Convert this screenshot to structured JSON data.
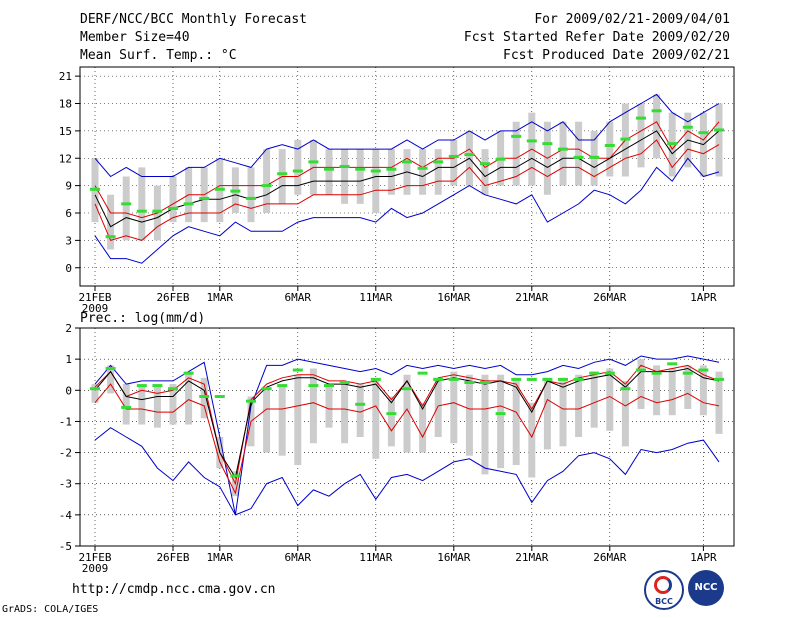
{
  "header": {
    "title": "DERF/NCC/BCC Monthly Forecast",
    "member_size": "Member Size=40",
    "variable": "Mean Surf. Temp.: °C",
    "forecast_period": "For 2009/02/21-2009/04/01",
    "started_date": "Fcst Started Refer Date 2009/02/20",
    "produced_date": "Fcst Produced Date 2009/02/21"
  },
  "footer": {
    "url": "http://cmdp.ncc.cma.gov.cn",
    "credit": "GrADS: COLA/IGES",
    "logo_left": "BCC",
    "logo_right": "NCC"
  },
  "colors": {
    "envelope": "#0000cc",
    "spread": "#dd0000",
    "mean": "#000000",
    "bar": "#cccccc",
    "marker": "#33dd33"
  },
  "chart_data": [
    {
      "type": "line",
      "title": "Mean Surf. Temp.: °C",
      "ylim": [
        -2,
        22
      ],
      "yticks": [
        0,
        3,
        6,
        9,
        12,
        15,
        18,
        21
      ],
      "x_tick_labels": [
        {
          "day": 0,
          "label": "21FEB",
          "sub": "2009"
        },
        {
          "day": 5,
          "label": "26FEB"
        },
        {
          "day": 8,
          "label": "1MAR"
        },
        {
          "day": 13,
          "label": "6MAR"
        },
        {
          "day": 18,
          "label": "11MAR"
        },
        {
          "day": 23,
          "label": "16MAR"
        },
        {
          "day": 28,
          "label": "21MAR"
        },
        {
          "day": 33,
          "label": "26MAR"
        },
        {
          "day": 39,
          "label": "1APR"
        }
      ],
      "series": [
        {
          "name": "max",
          "color": "blue",
          "values": [
            12,
            10,
            11,
            10,
            10,
            10,
            11,
            11,
            12,
            11.5,
            11,
            13,
            13.5,
            13,
            14,
            13,
            13,
            13,
            13,
            13,
            14,
            13,
            14,
            14,
            15,
            14,
            15,
            15,
            16,
            15,
            16,
            14,
            14,
            16,
            17,
            18,
            19,
            17,
            16,
            17,
            18
          ]
        },
        {
          "name": "upper",
          "color": "red",
          "values": [
            9,
            6,
            6,
            5.5,
            6,
            7,
            8,
            8,
            9,
            9,
            9,
            9,
            10,
            10,
            11,
            11,
            11,
            11,
            11,
            11,
            12,
            11,
            12,
            12,
            13,
            11,
            12,
            12,
            13,
            12,
            13,
            13,
            12,
            12,
            14,
            15,
            16,
            13,
            15,
            14,
            16
          ]
        },
        {
          "name": "mean",
          "color": "black",
          "values": [
            8,
            4.5,
            5.5,
            5,
            5.5,
            6.5,
            7,
            7.5,
            7.5,
            8,
            7.5,
            8,
            9,
            9,
            9.5,
            9.5,
            9.5,
            9.5,
            10,
            10,
            10.5,
            10,
            11,
            11,
            12,
            10,
            11,
            11,
            12,
            11,
            12,
            12,
            11,
            12,
            13,
            14,
            15,
            12.5,
            14,
            13.5,
            15
          ]
        },
        {
          "name": "lower",
          "color": "red",
          "values": [
            7,
            3,
            3.5,
            3,
            4.5,
            5.5,
            6,
            6,
            6,
            7,
            6.5,
            7,
            7,
            7,
            8,
            8,
            8,
            8,
            8.5,
            8.5,
            9,
            9,
            9.5,
            9.5,
            11,
            9,
            9.5,
            10,
            11,
            10,
            11,
            11,
            10,
            11,
            12,
            12.5,
            14,
            11,
            13,
            12.5,
            13.5
          ]
        },
        {
          "name": "min",
          "color": "blue",
          "values": [
            3.5,
            1,
            1,
            0.5,
            2,
            3.5,
            4.5,
            4,
            3.5,
            5,
            4,
            4,
            4,
            5,
            5.5,
            5.5,
            5.5,
            5.5,
            5,
            6.5,
            5.5,
            6,
            7,
            8,
            9,
            8,
            7.5,
            7,
            8,
            5,
            6,
            7,
            8.5,
            8,
            7,
            8.5,
            11,
            9.5,
            12,
            10,
            10.5
          ]
        }
      ],
      "ranges": [
        [
          5,
          12
        ],
        [
          2,
          8
        ],
        [
          3,
          10
        ],
        [
          3,
          11
        ],
        [
          3,
          9
        ],
        [
          5,
          10
        ],
        [
          5,
          11
        ],
        [
          5,
          11
        ],
        [
          5,
          12
        ],
        [
          6,
          11
        ],
        [
          5,
          11
        ],
        [
          6,
          13
        ],
        [
          7,
          13
        ],
        [
          8,
          14
        ],
        [
          8,
          14
        ],
        [
          8,
          13
        ],
        [
          7,
          13
        ],
        [
          7,
          13
        ],
        [
          6,
          13
        ],
        [
          8,
          13
        ],
        [
          8,
          13
        ],
        [
          8,
          13
        ],
        [
          8,
          13
        ],
        [
          9,
          14
        ],
        [
          9,
          15
        ],
        [
          8,
          13
        ],
        [
          9,
          15
        ],
        [
          9,
          16
        ],
        [
          9,
          17
        ],
        [
          8,
          16
        ],
        [
          9,
          16
        ],
        [
          9,
          16
        ],
        [
          9,
          15
        ],
        [
          10,
          16
        ],
        [
          10,
          18
        ],
        [
          11,
          18
        ],
        [
          12,
          19
        ],
        [
          10,
          17
        ],
        [
          11,
          17
        ],
        [
          10,
          17
        ],
        [
          10,
          18
        ]
      ],
      "markers": [
        8.6,
        3.4,
        7,
        6.2,
        6.2,
        6.5,
        7,
        7.6,
        8.6,
        8.4,
        7.6,
        9,
        10.3,
        10.6,
        11.6,
        10.8,
        11.1,
        10.8,
        10.6,
        10.8,
        11.6,
        10.9,
        11.6,
        12.2,
        12.4,
        11.4,
        11.9,
        14.4,
        13.9,
        13.6,
        13,
        12.1,
        12.1,
        13.4,
        14.1,
        16.4,
        17.2,
        13.6,
        15.4,
        14.8,
        15.1
      ]
    },
    {
      "type": "line",
      "title": "Prec.: log(mm/d)",
      "ylim": [
        -5,
        2
      ],
      "yticks": [
        -5,
        -4,
        -3,
        -2,
        -1,
        0,
        1,
        2
      ],
      "x_tick_labels": [
        {
          "day": 0,
          "label": "21FEB",
          "sub": "2009"
        },
        {
          "day": 5,
          "label": "26FEB"
        },
        {
          "day": 8,
          "label": "1MAR"
        },
        {
          "day": 13,
          "label": "6MAR"
        },
        {
          "day": 18,
          "label": "11MAR"
        },
        {
          "day": 23,
          "label": "16MAR"
        },
        {
          "day": 28,
          "label": "21MAR"
        },
        {
          "day": 33,
          "label": "26MAR"
        },
        {
          "day": 39,
          "label": "1APR"
        }
      ],
      "series": [
        {
          "name": "max",
          "color": "blue",
          "values": [
            0.2,
            0.8,
            0.2,
            0.3,
            0.3,
            0.3,
            0.6,
            0.9,
            -1.5,
            -4,
            -0.5,
            0.8,
            0.8,
            1,
            0.9,
            0.8,
            0.7,
            0.6,
            0.7,
            0.5,
            0.8,
            0.7,
            0.8,
            0.7,
            0.8,
            0.7,
            0.8,
            0.5,
            0.5,
            0.6,
            0.8,
            0.7,
            0.9,
            1,
            0.8,
            1.1,
            1,
            1,
            1.1,
            1,
            0.9
          ]
        },
        {
          "name": "upper",
          "color": "red",
          "values": [
            0.1,
            0.6,
            -0.2,
            0,
            -0.1,
            0,
            0.4,
            0.2,
            -2,
            -3,
            -0.3,
            0.2,
            0.4,
            0.5,
            0.5,
            0.3,
            0.3,
            0.2,
            0.3,
            -0.3,
            0.3,
            -0.5,
            0.4,
            0.5,
            0.4,
            0.3,
            0.3,
            0.2,
            -0.6,
            0.3,
            0.2,
            0.4,
            0.5,
            0.6,
            0.2,
            0.8,
            0.6,
            0.7,
            0.8,
            0.5,
            0.3
          ]
        },
        {
          "name": "mean",
          "color": "black",
          "values": [
            0,
            0.6,
            -0.2,
            -0.3,
            -0.2,
            -0.2,
            0.3,
            0,
            -2,
            -2.8,
            -0.4,
            0.1,
            0.3,
            0.4,
            0.4,
            0.2,
            0.2,
            0.1,
            0.2,
            -0.4,
            0.3,
            -0.6,
            0.3,
            0.4,
            0.3,
            0.2,
            0.3,
            0.1,
            -0.7,
            0.3,
            0.1,
            0.3,
            0.4,
            0.5,
            0.1,
            0.6,
            0.6,
            0.6,
            0.7,
            0.4,
            0.3
          ]
        },
        {
          "name": "lower",
          "color": "red",
          "values": [
            -0.4,
            0.2,
            -0.6,
            -0.6,
            -0.7,
            -0.7,
            -0.3,
            -0.5,
            -2.3,
            -3.3,
            -1,
            -0.6,
            -0.6,
            -0.5,
            -0.4,
            -0.6,
            -0.6,
            -0.7,
            -0.5,
            -1.3,
            -0.6,
            -1.5,
            -0.5,
            -0.4,
            -0.6,
            -0.6,
            -0.5,
            -0.7,
            -1.5,
            -0.3,
            -0.6,
            -0.6,
            -0.4,
            -0.2,
            -0.5,
            -0.2,
            -0.4,
            -0.3,
            -0.1,
            -0.4,
            -0.5
          ]
        },
        {
          "name": "min",
          "color": "blue",
          "values": [
            -1.6,
            -1.2,
            -1.5,
            -1.8,
            -2.5,
            -2.9,
            -2.3,
            -2.8,
            -3.1,
            -4,
            -3.8,
            -3,
            -2.8,
            -3.7,
            -3.2,
            -3.4,
            -3,
            -2.7,
            -3.5,
            -2.8,
            -2.7,
            -2.9,
            -2.6,
            -2.3,
            -2.2,
            -2.5,
            -2.6,
            -2.7,
            -3.6,
            -2.9,
            -2.6,
            -2.1,
            -2,
            -2.2,
            -2.7,
            -1.9,
            -2,
            -1.9,
            -1.7,
            -1.6,
            -2.3
          ]
        }
      ],
      "ranges": [
        [
          -0.4,
          0.2
        ],
        [
          -0.1,
          0.8
        ],
        [
          -1.1,
          0.2
        ],
        [
          -1.1,
          0.2
        ],
        [
          -1.2,
          0.2
        ],
        [
          -1.1,
          0.2
        ],
        [
          -1.1,
          0.6
        ],
        [
          -0.9,
          0.4
        ],
        [
          -2.5,
          -1.5
        ],
        [
          -3.4,
          -2.6
        ],
        [
          -1.8,
          -0.2
        ],
        [
          -2,
          0
        ],
        [
          -2.1,
          0.2
        ],
        [
          -2.4,
          0.5
        ],
        [
          -1.7,
          0.7
        ],
        [
          -1.2,
          0.2
        ],
        [
          -1.7,
          0.2
        ],
        [
          -1.5,
          0.2
        ],
        [
          -2.2,
          0.3
        ],
        [
          -1.8,
          -0.2
        ],
        [
          -2,
          0.5
        ],
        [
          -2,
          -0.4
        ],
        [
          -1.5,
          0.4
        ],
        [
          -1.7,
          0.6
        ],
        [
          -2.1,
          0.5
        ],
        [
          -2.7,
          0.5
        ],
        [
          -2.5,
          0.5
        ],
        [
          -2.4,
          0.4
        ],
        [
          -2.8,
          -0.4
        ],
        [
          -1.9,
          0.4
        ],
        [
          -1.8,
          0.4
        ],
        [
          -1.5,
          0.5
        ],
        [
          -1.2,
          0.6
        ],
        [
          -1.3,
          0.7
        ],
        [
          -1.8,
          0.3
        ],
        [
          -0.6,
          1
        ],
        [
          -0.8,
          0.8
        ],
        [
          -0.8,
          0.7
        ],
        [
          -0.6,
          0.8
        ],
        [
          -0.8,
          0.8
        ],
        [
          -1.4,
          0.6
        ]
      ],
      "markers": [
        0.05,
        0.7,
        -0.55,
        0.15,
        0.15,
        0.05,
        0.55,
        -0.2,
        -0.2,
        -2.75,
        -0.35,
        0.05,
        0.15,
        0.65,
        0.15,
        0.15,
        0.25,
        -0.45,
        0.35,
        -0.75,
        0.05,
        0.55,
        0.35,
        0.35,
        0.25,
        0.25,
        -0.75,
        0.35,
        0.35,
        0.35,
        0.35,
        0.35,
        0.55,
        0.55,
        0.05,
        0.65,
        0.55,
        0.85,
        0.55,
        0.65,
        0.35
      ]
    }
  ]
}
